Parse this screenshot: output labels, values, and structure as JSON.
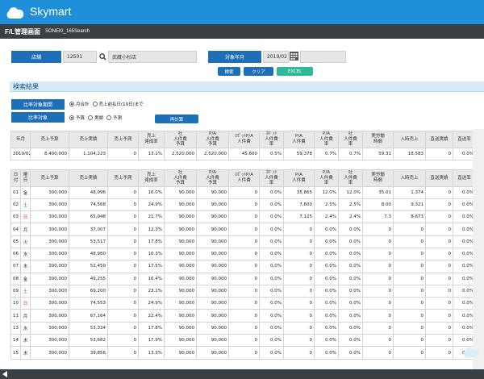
{
  "app": {
    "brand": "Skymart"
  },
  "titlebar": {
    "title": "F/L管理画面",
    "subtitle": "SONEKI_165Search"
  },
  "filters": {
    "store_label": "店舗",
    "store_code": "12501",
    "store_name": "武蔵小杉店",
    "month_label": "対象年月",
    "month_value": "2019/02"
  },
  "buttons": {
    "search": "検索",
    "clear": "クリア",
    "excel": "EXCEL",
    "recalc": "再計算"
  },
  "colors": {
    "header": "#1e8fd8",
    "label": "#1e6fb8",
    "excel": "#2fb996"
  },
  "section": {
    "title": "検索結果"
  },
  "options": {
    "period_label": "比率対象期間",
    "period_monthly": "月合計",
    "period_until": "売上前払日(19日)まで",
    "compare_label": "比率対象",
    "compare_budget": "予算",
    "compare_actual": "実績",
    "compare_forecast": "予測"
  },
  "summary": {
    "headers": [
      "年月",
      "売上予算",
      "売上実績",
      "売上予測",
      "売上\n達成率",
      "社\n人件費\n予算",
      "P/A\n人件費\n予算",
      "ｽﾎﾟｯﾄP/A\n人件費",
      "ｽﾎﾟｯﾄ\n人件費\n率",
      "P/A\n人件費",
      "P/A\n人件費\n率",
      "社\n人件費\n率",
      "実労働\n時間",
      "入時売上",
      "直送実績",
      "直送率"
    ],
    "row": [
      "2019/02",
      "8,400,000",
      "1,104,223",
      "0",
      "13.1%",
      "2,520,000",
      "2,520,000",
      "45,600",
      "0.5%",
      "59,378",
      "0.7%",
      "0.7%",
      "59.31",
      "18,583",
      "0",
      "0.0%"
    ]
  },
  "daily": {
    "headers": [
      "日\n付",
      "曜\n日",
      "売上予算",
      "売上実績",
      "売上予測",
      "売上\n達成率",
      "社\n人件費\n予算",
      "P/A\n人件費\n予算",
      "ｽﾎﾟｯﾄP/A\n人件費",
      "ｽﾎﾟｯﾄ\n人件費\n率",
      "P/A\n人件費",
      "P/A\n人件費\n率",
      "社\n人件費\n率",
      "実労働\n時間",
      "入時売上",
      "直送実績",
      "直送率"
    ],
    "rows": [
      [
        "01",
        "金",
        "300,000",
        "48,096",
        "0",
        "16.0%",
        "90,000",
        "90,000",
        "0",
        "0.0%",
        "35,865",
        "12.0%",
        "12.0%",
        "35.01",
        "1,374",
        "0",
        "0.0%"
      ],
      [
        "02",
        "土",
        "300,000",
        "74,568",
        "0",
        "24.9%",
        "90,000",
        "90,000",
        "0",
        "0.0%",
        "7,600",
        "2.5%",
        "2.5%",
        "8.00",
        "9,321",
        "0",
        "0.0%"
      ],
      [
        "03",
        "日",
        "300,000",
        "65,048",
        "0",
        "21.7%",
        "90,000",
        "90,000",
        "0",
        "0.0%",
        "7,125",
        "2.4%",
        "2.4%",
        "7.3",
        "8,673",
        "0",
        "0.0%"
      ],
      [
        "04",
        "月",
        "300,000",
        "37,007",
        "0",
        "12.3%",
        "90,000",
        "90,000",
        "0",
        "0.0%",
        "0",
        "0.0%",
        "0.0%",
        "0",
        "0",
        "0",
        "0.0%"
      ],
      [
        "05",
        "火",
        "300,000",
        "53,517",
        "0",
        "17.8%",
        "90,000",
        "90,000",
        "0",
        "0.0%",
        "0",
        "0.0%",
        "0.0%",
        "0",
        "0",
        "0",
        "0.0%"
      ],
      [
        "06",
        "水",
        "300,000",
        "48,980",
        "0",
        "16.3%",
        "90,000",
        "90,000",
        "0",
        "0.0%",
        "0",
        "0.0%",
        "0.0%",
        "0",
        "0",
        "0",
        "0.0%"
      ],
      [
        "07",
        "木",
        "300,000",
        "52,459",
        "0",
        "17.5%",
        "90,000",
        "90,000",
        "0",
        "0.0%",
        "0",
        "0.0%",
        "0.0%",
        "0",
        "0",
        "0",
        "0.0%"
      ],
      [
        "08",
        "金",
        "300,000",
        "49,255",
        "0",
        "16.4%",
        "90,000",
        "90,000",
        "0",
        "0.0%",
        "0",
        "0.0%",
        "0.0%",
        "0",
        "0",
        "0",
        "0.0%"
      ],
      [
        "09",
        "土",
        "300,000",
        "69,200",
        "0",
        "23.1%",
        "90,000",
        "90,000",
        "0",
        "0.0%",
        "0",
        "0.0%",
        "0.0%",
        "0",
        "0",
        "0",
        "0.0%"
      ],
      [
        "10",
        "日",
        "300,000",
        "74,553",
        "0",
        "24.9%",
        "90,000",
        "90,000",
        "0",
        "0.0%",
        "0",
        "0.0%",
        "0.0%",
        "0",
        "0",
        "0",
        "0.0%"
      ],
      [
        "11",
        "月",
        "300,000",
        "67,164",
        "0",
        "22.4%",
        "90,000",
        "90,000",
        "0",
        "0.0%",
        "0",
        "0.0%",
        "0.0%",
        "0",
        "0",
        "0",
        "0.0%"
      ],
      [
        "13",
        "水",
        "300,000",
        "53,334",
        "0",
        "17.8%",
        "90,000",
        "90,000",
        "0",
        "0.0%",
        "0",
        "0.0%",
        "0.0%",
        "0",
        "0",
        "0",
        "0.0%"
      ],
      [
        "14",
        "木",
        "300,000",
        "53,682",
        "0",
        "17.9%",
        "90,000",
        "90,000",
        "0",
        "0.0%",
        "0",
        "0.0%",
        "0.0%",
        "0",
        "0",
        "0",
        "0.0%"
      ],
      [
        "15",
        "木",
        "300,000",
        "39,856",
        "0",
        "13.3%",
        "90,000",
        "90,000",
        "0",
        "0.0%",
        "0",
        "0.0%",
        "0.0%",
        "0",
        "0",
        "0",
        "0.0%"
      ]
    ]
  }
}
